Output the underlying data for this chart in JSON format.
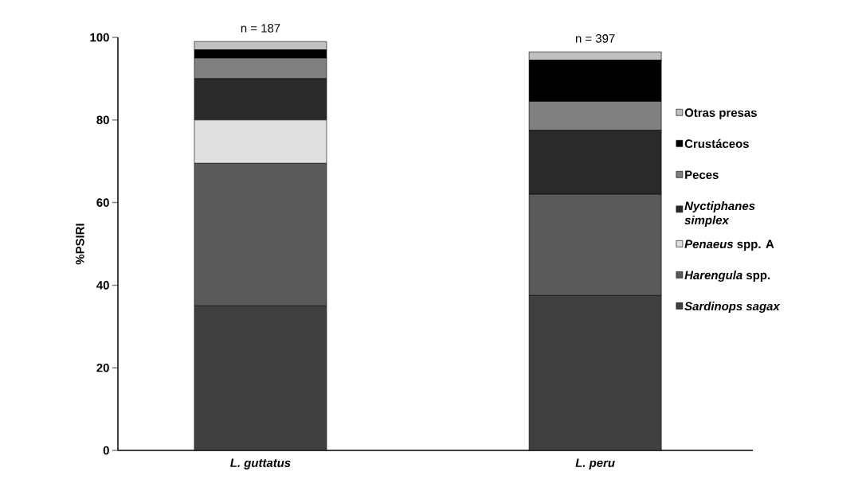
{
  "chart_data": {
    "type": "bar",
    "stacked": true,
    "ylabel": "%PSIRI",
    "categories": [
      "*L.  guttatus*",
      "*L. peru*"
    ],
    "series": [
      {
        "name": "*Sardinops sagax*",
        "color": "#404040",
        "values": [
          35,
          37.5
        ]
      },
      {
        "name": "*Harengula* spp.",
        "color": "#5a5a5a",
        "values": [
          34.5,
          24.5
        ]
      },
      {
        "name": "*Penaeus* spp. A",
        "color": "#e0e0e0",
        "values": [
          10.5,
          0
        ]
      },
      {
        "name": "*Nyctiphanes simplex*",
        "color": "#2a2a2a",
        "values": [
          10,
          15.5
        ]
      },
      {
        "name": "Peces",
        "color": "#808080",
        "values": [
          5,
          7
        ]
      },
      {
        "name": "Crustáceos",
        "color": "#000000",
        "values": [
          2,
          10
        ]
      },
      {
        "name": "Otras presas",
        "color": "#c0c0c0",
        "values": [
          2,
          2
        ]
      }
    ],
    "ylim": [
      0,
      100
    ],
    "yticks": [
      0,
      20,
      40,
      60,
      80,
      100
    ],
    "annotations": [
      "n = 187",
      "n = 397"
    ],
    "legend": "right",
    "grid": false
  }
}
